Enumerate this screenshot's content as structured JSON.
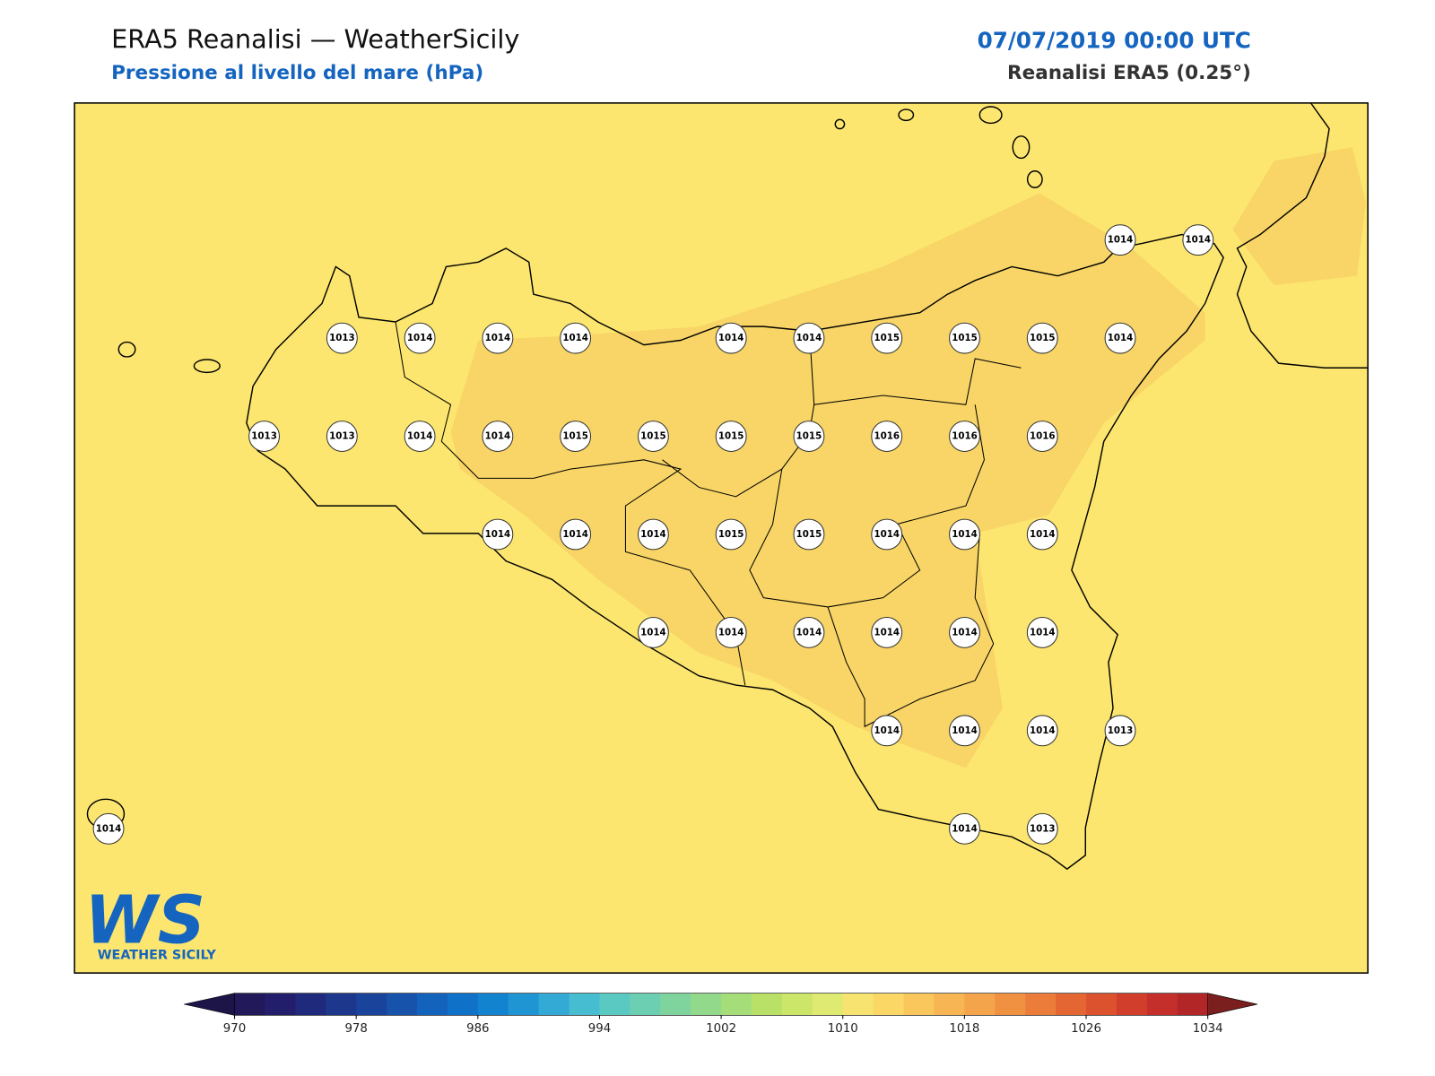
{
  "header": {
    "title": "ERA5 Reanalisi — WeatherSicily",
    "subtitle": "Pressione al livello del mare (hPa)",
    "date": "07/07/2019 00:00 UTC",
    "source": "Reanalisi ERA5 (0.25°)"
  },
  "logo": {
    "mark": "WS",
    "name": "WEATHER SICILY"
  },
  "stations": [
    1014,
    1014,
    1013,
    1014,
    1014,
    1014,
    1014,
    1014,
    1015,
    1015,
    1015,
    1014,
    1013,
    1013,
    1014,
    1014,
    1015,
    1015,
    1015,
    1015,
    1016,
    1016,
    1016,
    1014,
    1014,
    1014,
    1015,
    1015,
    1014,
    1014,
    1014,
    1014,
    1014,
    1014,
    1014,
    1014,
    1014,
    1014,
    1014,
    1014,
    1013,
    1014,
    1014,
    1013
  ],
  "colorbar": {
    "range": [
      970,
      1034
    ],
    "ticks": [
      970,
      978,
      986,
      994,
      1002,
      1010,
      1018,
      1026,
      1034
    ],
    "under": "#1d1448",
    "over": "#7a1e1e",
    "colors": [
      "#22195a",
      "#221e6b",
      "#1f2a7c",
      "#1d378c",
      "#1a449b",
      "#1752ab",
      "#1362bb",
      "#0f72c8",
      "#1283cf",
      "#1f95d4",
      "#33a9d5",
      "#46bdd0",
      "#59c9c2",
      "#6ccfb2",
      "#7fd49e",
      "#92d98b",
      "#a5dd78",
      "#b9e167",
      "#cce66a",
      "#dfea72",
      "#f7e36f",
      "#fbd766",
      "#f9c75b",
      "#f7b653",
      "#f4a44a",
      "#f09142",
      "#eb7c3a",
      "#e46633",
      "#dc512e",
      "#d13e2b",
      "#c42f2b",
      "#b32628"
    ]
  }
}
